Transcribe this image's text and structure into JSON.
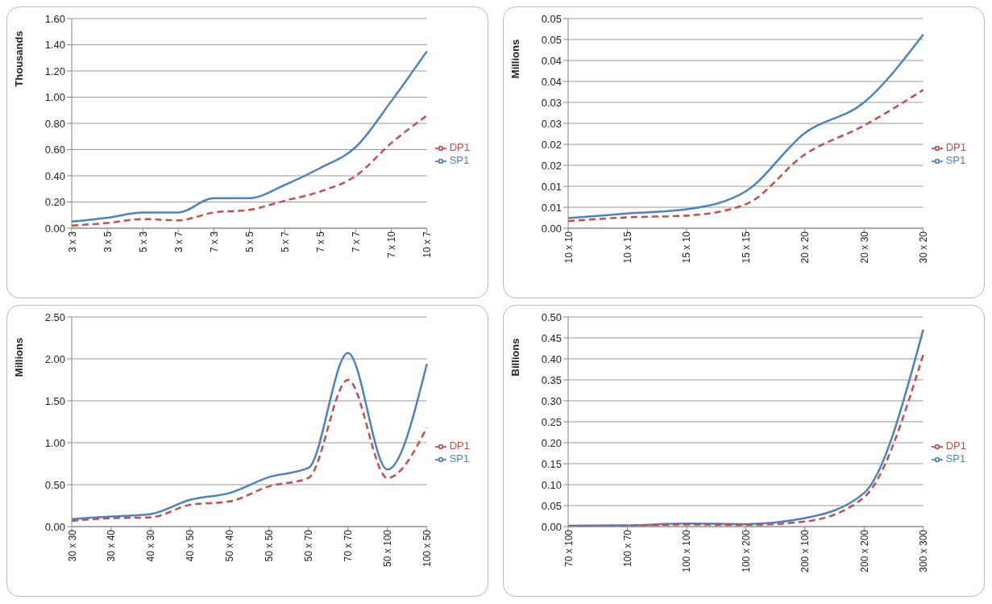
{
  "chart_data": [
    {
      "type": "line",
      "ylabel": "Thousands",
      "categories": [
        "3 x 3",
        "3 x 5",
        "5 x 3",
        "3 x 7",
        "7 x 3",
        "5 x 5",
        "5 x 7",
        "7 x 5",
        "7 x 7",
        "7 x 10",
        "10 x 7"
      ],
      "ylim": [
        0,
        1.6
      ],
      "yticks": [
        {
          "value": 0,
          "label": "0.00"
        },
        {
          "value": 0.2,
          "label": "0.20"
        },
        {
          "value": 0.4,
          "label": "0.40"
        },
        {
          "value": 0.6,
          "label": "0.60"
        },
        {
          "value": 0.8,
          "label": "0.80"
        },
        {
          "value": 1,
          "label": "1.00"
        },
        {
          "value": 1.2,
          "label": "1.20"
        },
        {
          "value": 1.4,
          "label": "1.40"
        },
        {
          "value": 1.6,
          "label": "1.60"
        }
      ],
      "grid": "y",
      "legend": "right",
      "series": [
        {
          "name": "SP1",
          "color": "#4f81bd",
          "line_style": "solid",
          "values": [
            0.05,
            0.08,
            0.12,
            0.12,
            0.23,
            0.23,
            0.33,
            0.46,
            0.62,
            0.97,
            1.35
          ]
        },
        {
          "name": "DP1",
          "color": "#c0504d",
          "line_style": "dashed",
          "values": [
            0.02,
            0.04,
            0.07,
            0.06,
            0.12,
            0.14,
            0.21,
            0.28,
            0.4,
            0.65,
            0.86
          ]
        }
      ]
    },
    {
      "type": "line",
      "ylabel": "Millions",
      "categories": [
        "10 x 10",
        "10 x 15",
        "15 x 10",
        "15 x 15",
        "20 x 20",
        "20 x 30",
        "30 x 20"
      ],
      "ylim": [
        0,
        0.05
      ],
      "yticks": [
        {
          "value": 0,
          "label": "0.00"
        },
        {
          "value": 0.005,
          "label": "0.01"
        },
        {
          "value": 0.01,
          "label": "0.01"
        },
        {
          "value": 0.015,
          "label": "0.02"
        },
        {
          "value": 0.02,
          "label": "0.02"
        },
        {
          "value": 0.025,
          "label": "0.03"
        },
        {
          "value": 0.03,
          "label": "0.03"
        },
        {
          "value": 0.035,
          "label": "0.04"
        },
        {
          "value": 0.04,
          "label": "0.04"
        },
        {
          "value": 0.045,
          "label": "0.05"
        },
        {
          "value": 0.05,
          "label": "0.05"
        }
      ],
      "grid": "y",
      "legend": "right",
      "series": [
        {
          "name": "SP1",
          "color": "#4f81bd",
          "line_style": "solid",
          "values": [
            0.0024,
            0.0035,
            0.0045,
            0.0088,
            0.0227,
            0.03,
            0.0462
          ]
        },
        {
          "name": "DP1",
          "color": "#c0504d",
          "line_style": "dashed",
          "values": [
            0.0017,
            0.0026,
            0.003,
            0.0057,
            0.0176,
            0.0245,
            0.033
          ]
        }
      ]
    },
    {
      "type": "line",
      "ylabel": "Millions",
      "categories": [
        "30 x 30",
        "30 x 40",
        "40 x 30",
        "40 x 50",
        "50 x 40",
        "50 x 50",
        "50 x 70",
        "70 x 70",
        "50 x 100",
        "100 x 50"
      ],
      "ylim": [
        0,
        2.5
      ],
      "yticks": [
        {
          "value": 0,
          "label": "0.00"
        },
        {
          "value": 0.5,
          "label": "0.50"
        },
        {
          "value": 1,
          "label": "1.00"
        },
        {
          "value": 1.5,
          "label": "1.50"
        },
        {
          "value": 2,
          "label": "2.00"
        },
        {
          "value": 2.5,
          "label": "2.50"
        }
      ],
      "grid": "y",
      "legend": "right",
      "series": [
        {
          "name": "SP1",
          "color": "#4f81bd",
          "line_style": "solid",
          "values": [
            0.09,
            0.12,
            0.15,
            0.32,
            0.4,
            0.59,
            0.7,
            2.07,
            0.68,
            1.94
          ]
        },
        {
          "name": "DP1",
          "color": "#c0504d",
          "line_style": "dashed",
          "values": [
            0.07,
            0.1,
            0.11,
            0.26,
            0.3,
            0.48,
            0.58,
            1.75,
            0.58,
            1.18
          ]
        }
      ]
    },
    {
      "type": "line",
      "ylabel": "Billions",
      "categories": [
        "70 x 100",
        "100 x 70",
        "100 x 100",
        "100 x 200",
        "200 x 100",
        "200 x 200",
        "300 x 300"
      ],
      "ylim": [
        0,
        0.5
      ],
      "yticks": [
        {
          "value": 0,
          "label": "0.00"
        },
        {
          "value": 0.05,
          "label": "0.05"
        },
        {
          "value": 0.1,
          "label": "0.10"
        },
        {
          "value": 0.15,
          "label": "0.15"
        },
        {
          "value": 0.2,
          "label": "0.20"
        },
        {
          "value": 0.25,
          "label": "0.25"
        },
        {
          "value": 0.3,
          "label": "0.30"
        },
        {
          "value": 0.35,
          "label": "0.35"
        },
        {
          "value": 0.4,
          "label": "0.40"
        },
        {
          "value": 0.45,
          "label": "0.45"
        },
        {
          "value": 0.5,
          "label": "0.50"
        }
      ],
      "grid": "y",
      "legend": "right",
      "series": [
        {
          "name": "SP1",
          "color": "#4f81bd",
          "line_style": "solid",
          "values": [
            0.002,
            0.003,
            0.007,
            0.006,
            0.02,
            0.08,
            0.47
          ]
        },
        {
          "name": "DP1",
          "color": "#c0504d",
          "line_style": "dashed",
          "values": [
            0.001,
            0.002,
            0.005,
            0.004,
            0.012,
            0.07,
            0.41
          ]
        }
      ]
    }
  ]
}
